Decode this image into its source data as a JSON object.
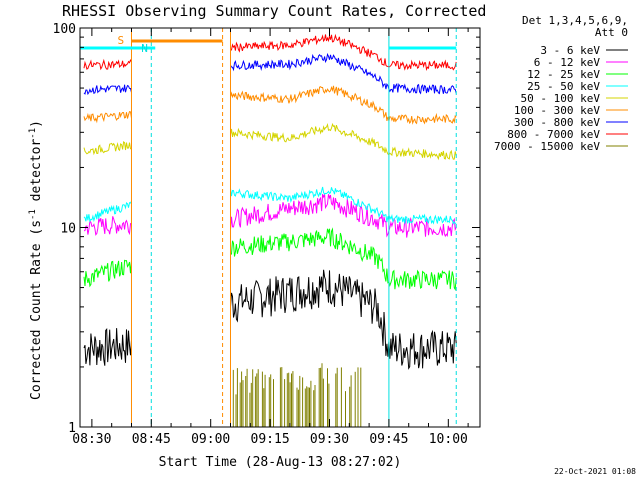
{
  "chart_data": {
    "type": "line",
    "title": "RHESSI Observing Summary Count Rates, Corrected",
    "xlabel": "Start Time (28-Aug-13 08:27:02)",
    "ylabel": "Corrected Count Rate (s",
    "ylabel_sup": "-1",
    "ylabel_tail": " detector",
    "ylabel_sup2": "-1",
    "ylabel_close": ")",
    "y_scale": "log",
    "ylim": [
      1,
      100
    ],
    "xlim_minutes": [
      "08:27",
      "10:08"
    ],
    "x_ticks": [
      "08:30",
      "08:45",
      "09:00",
      "09:15",
      "09:30",
      "09:45",
      "10:00"
    ],
    "y_ticks": [
      "1",
      "10",
      "100"
    ],
    "legend_header": [
      "Det 1,3,4,5,6,9,",
      "Att 0"
    ],
    "legend_position": "right",
    "series": [
      {
        "name": "3 - 6 keV",
        "color": "#000000",
        "values": [
          [
            "08:28",
            2.5
          ],
          [
            "08:40",
            2.6
          ],
          [
            "09:05",
            4.2
          ],
          [
            "09:20",
            4.8
          ],
          [
            "09:30",
            5.2
          ],
          [
            "09:42",
            4.0
          ],
          [
            "09:45",
            2.5
          ],
          [
            "10:02",
            2.5
          ]
        ]
      },
      {
        "name": "6 - 12 keV",
        "color": "#ff00ff",
        "values": [
          [
            "08:28",
            10.0
          ],
          [
            "08:40",
            10.5
          ],
          [
            "09:05",
            11.0
          ],
          [
            "09:20",
            12.5
          ],
          [
            "09:30",
            13.5
          ],
          [
            "09:42",
            11.0
          ],
          [
            "09:45",
            10.0
          ],
          [
            "10:02",
            10.0
          ]
        ]
      },
      {
        "name": "12 - 25 keV",
        "color": "#00ff00",
        "values": [
          [
            "08:28",
            5.5
          ],
          [
            "08:40",
            6.5
          ],
          [
            "09:05",
            8.0
          ],
          [
            "09:20",
            8.5
          ],
          [
            "09:30",
            9.0
          ],
          [
            "09:42",
            7.0
          ],
          [
            "09:45",
            5.5
          ],
          [
            "10:02",
            5.5
          ]
        ]
      },
      {
        "name": "25 - 50 keV",
        "color": "#00ffff",
        "values": [
          [
            "08:28",
            11.0
          ],
          [
            "08:40",
            13.0
          ],
          [
            "09:05",
            15.0
          ],
          [
            "09:20",
            14.0
          ],
          [
            "09:30",
            15.5
          ],
          [
            "09:42",
            12.0
          ],
          [
            "09:45",
            11.0
          ],
          [
            "10:02",
            11.0
          ]
        ]
      },
      {
        "name": "50 - 100 keV",
        "color": "#d4d400",
        "values": [
          [
            "08:28",
            24.0
          ],
          [
            "08:40",
            26.0
          ],
          [
            "09:05",
            30.0
          ],
          [
            "09:20",
            28.0
          ],
          [
            "09:30",
            32.0
          ],
          [
            "09:42",
            26.0
          ],
          [
            "09:45",
            24.0
          ],
          [
            "10:02",
            23.0
          ]
        ]
      },
      {
        "name": "100 - 300 keV",
        "color": "#ff8c00",
        "values": [
          [
            "08:28",
            35.0
          ],
          [
            "08:40",
            37.0
          ],
          [
            "09:05",
            46.0
          ],
          [
            "09:20",
            44.0
          ],
          [
            "09:30",
            50.0
          ],
          [
            "09:42",
            40.0
          ],
          [
            "09:45",
            35.0
          ],
          [
            "10:02",
            35.0
          ]
        ]
      },
      {
        "name": "300 - 800 keV",
        "color": "#0000ff",
        "values": [
          [
            "08:28",
            49.0
          ],
          [
            "08:40",
            50.0
          ],
          [
            "09:05",
            65.0
          ],
          [
            "09:20",
            66.0
          ],
          [
            "09:30",
            72.0
          ],
          [
            "09:42",
            56.0
          ],
          [
            "09:45",
            50.0
          ],
          [
            "10:02",
            49.0
          ]
        ]
      },
      {
        "name": "800 - 7000 keV",
        "color": "#ff0000",
        "values": [
          [
            "08:28",
            65.0
          ],
          [
            "08:40",
            66.0
          ],
          [
            "09:05",
            80.0
          ],
          [
            "09:20",
            82.0
          ],
          [
            "09:30",
            90.0
          ],
          [
            "09:42",
            72.0
          ],
          [
            "09:45",
            65.0
          ],
          [
            "10:02",
            65.0
          ]
        ]
      },
      {
        "name": "7000 - 15000 keV",
        "color": "#808000",
        "values": [
          [
            "09:05",
            1.4
          ],
          [
            "09:30",
            1.5
          ],
          [
            "09:38",
            1.4
          ]
        ]
      }
    ],
    "annotations": [
      {
        "text": "S",
        "color": "#ff8c00",
        "x": "08:40"
      },
      {
        "text": "N",
        "color": "#00e0e0",
        "x": "08:46"
      }
    ],
    "footer_timestamp": "22-Oct-2021 01:08"
  }
}
